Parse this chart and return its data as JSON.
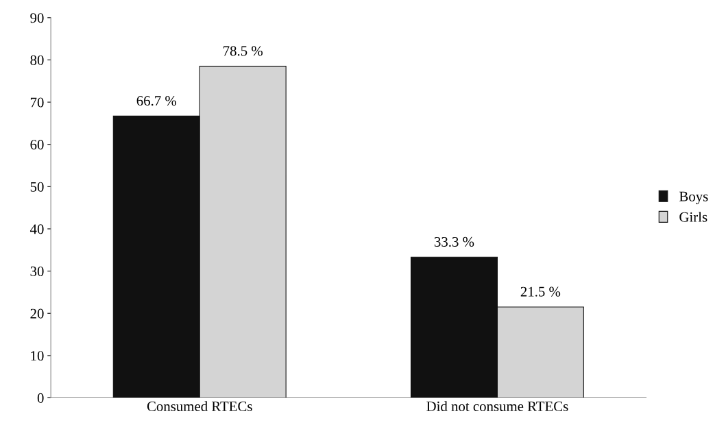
{
  "chart_data": {
    "type": "bar",
    "categories": [
      "Consumed RTECs",
      "Did not consume RTECs"
    ],
    "series": [
      {
        "name": "Boys",
        "color": "#111111",
        "values": [
          66.7,
          33.3
        ],
        "value_labels": [
          "66.7 %",
          "33.3 %"
        ]
      },
      {
        "name": "Girls",
        "color": "#d4d4d4",
        "values": [
          78.5,
          21.5
        ],
        "value_labels": [
          "78.5 %",
          "21.5 %"
        ]
      }
    ],
    "ylim": [
      0,
      90
    ],
    "yticks": [
      0,
      10,
      20,
      30,
      40,
      50,
      60,
      70,
      80,
      90
    ],
    "grid": false,
    "legend": "right"
  }
}
